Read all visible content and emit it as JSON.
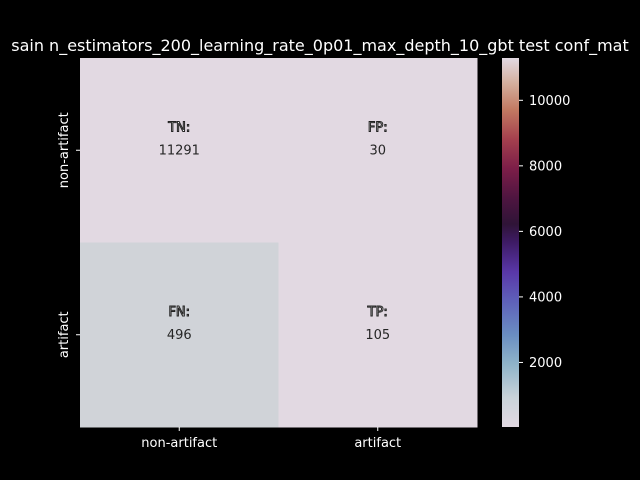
{
  "chart_data": {
    "type": "heatmap",
    "title": "sain n_estimators_200_learning_rate_0p01_max_depth_10_gbt test conf_mat",
    "x_tick_labels": [
      "non-artifact",
      "artifact"
    ],
    "y_tick_labels": [
      "non-artifact",
      "artifact"
    ],
    "cells": [
      {
        "row": 0,
        "col": 0,
        "label": "TN:",
        "value": 11291,
        "display": "11291"
      },
      {
        "row": 0,
        "col": 1,
        "label": "FP:",
        "value": 30,
        "display": "30"
      },
      {
        "row": 1,
        "col": 0,
        "label": "FN:",
        "value": 496,
        "display": "496"
      },
      {
        "row": 1,
        "col": 1,
        "label": "TP:",
        "value": 105,
        "display": "105"
      }
    ],
    "colormap": "twilight",
    "colorbar": {
      "ticks": [
        2000,
        4000,
        6000,
        8000,
        10000
      ],
      "tick_labels": [
        "2000",
        "4000",
        "6000",
        "8000",
        "10000"
      ],
      "vmin": 30,
      "vmax": 11291
    },
    "colors": {
      "background": "#000000",
      "cell_light": "#e2d9e2",
      "cell_lower_left": "#d0d3d8"
    }
  }
}
